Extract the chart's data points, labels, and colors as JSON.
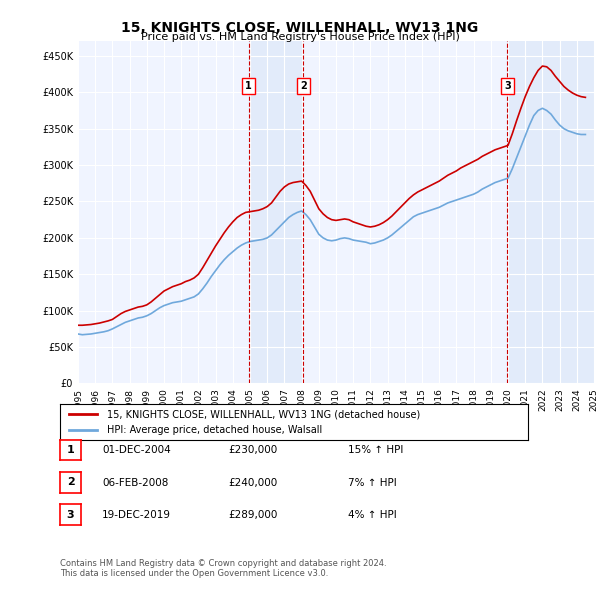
{
  "title": "15, KNIGHTS CLOSE, WILLENHALL, WV13 1NG",
  "subtitle": "Price paid vs. HM Land Registry's House Price Index (HPI)",
  "ylabel": "",
  "ylim": [
    0,
    470000
  ],
  "yticks": [
    0,
    50000,
    100000,
    150000,
    200000,
    250000,
    300000,
    350000,
    400000,
    450000
  ],
  "ytick_labels": [
    "£0",
    "£50K",
    "£100K",
    "£150K",
    "£200K",
    "£250K",
    "£300K",
    "£350K",
    "£400K",
    "£450K"
  ],
  "background_color": "#ffffff",
  "plot_bg_color": "#f0f4ff",
  "grid_color": "#ffffff",
  "legend_label_red": "15, KNIGHTS CLOSE, WILLENHALL, WV13 1NG (detached house)",
  "legend_label_blue": "HPI: Average price, detached house, Walsall",
  "footer": "Contains HM Land Registry data © Crown copyright and database right 2024.\nThis data is licensed under the Open Government Licence v3.0.",
  "transactions": [
    {
      "num": 1,
      "date": "01-DEC-2004",
      "price": 230000,
      "pct": "15%",
      "dir": "↑",
      "x_year": 2004.92
    },
    {
      "num": 2,
      "date": "06-FEB-2008",
      "price": 240000,
      "pct": "7%",
      "dir": "↑",
      "x_year": 2008.1
    },
    {
      "num": 3,
      "date": "19-DEC-2019",
      "price": 289000,
      "pct": "4%",
      "dir": "↑",
      "x_year": 2019.96
    }
  ],
  "hpi_color": "#6fa8dc",
  "price_color": "#cc0000",
  "shade_color": "#d6e4f7",
  "vline_color": "#cc0000",
  "hpi_data": {
    "years": [
      1995.0,
      1995.25,
      1995.5,
      1995.75,
      1996.0,
      1996.25,
      1996.5,
      1996.75,
      1997.0,
      1997.25,
      1997.5,
      1997.75,
      1998.0,
      1998.25,
      1998.5,
      1998.75,
      1999.0,
      1999.25,
      1999.5,
      1999.75,
      2000.0,
      2000.25,
      2000.5,
      2000.75,
      2001.0,
      2001.25,
      2001.5,
      2001.75,
      2002.0,
      2002.25,
      2002.5,
      2002.75,
      2003.0,
      2003.25,
      2003.5,
      2003.75,
      2004.0,
      2004.25,
      2004.5,
      2004.75,
      2005.0,
      2005.25,
      2005.5,
      2005.75,
      2006.0,
      2006.25,
      2006.5,
      2006.75,
      2007.0,
      2007.25,
      2007.5,
      2007.75,
      2008.0,
      2008.25,
      2008.5,
      2008.75,
      2009.0,
      2009.25,
      2009.5,
      2009.75,
      2010.0,
      2010.25,
      2010.5,
      2010.75,
      2011.0,
      2011.25,
      2011.5,
      2011.75,
      2012.0,
      2012.25,
      2012.5,
      2012.75,
      2013.0,
      2013.25,
      2013.5,
      2013.75,
      2014.0,
      2014.25,
      2014.5,
      2014.75,
      2015.0,
      2015.25,
      2015.5,
      2015.75,
      2016.0,
      2016.25,
      2016.5,
      2016.75,
      2017.0,
      2017.25,
      2017.5,
      2017.75,
      2018.0,
      2018.25,
      2018.5,
      2018.75,
      2019.0,
      2019.25,
      2019.5,
      2019.75,
      2020.0,
      2020.25,
      2020.5,
      2020.75,
      2021.0,
      2021.25,
      2021.5,
      2021.75,
      2022.0,
      2022.25,
      2022.5,
      2022.75,
      2023.0,
      2023.25,
      2023.5,
      2023.75,
      2024.0,
      2024.25,
      2024.5
    ],
    "values": [
      68000,
      67000,
      67500,
      68000,
      69000,
      70000,
      71000,
      72500,
      75000,
      78000,
      81000,
      84000,
      86000,
      88000,
      90000,
      91000,
      93000,
      96000,
      100000,
      104000,
      107000,
      109000,
      111000,
      112000,
      113000,
      115000,
      117000,
      119000,
      123000,
      130000,
      138000,
      147000,
      155000,
      163000,
      170000,
      176000,
      181000,
      186000,
      190000,
      193000,
      195000,
      196000,
      197000,
      198000,
      200000,
      204000,
      210000,
      216000,
      222000,
      228000,
      232000,
      235000,
      237000,
      232000,
      225000,
      215000,
      205000,
      200000,
      197000,
      196000,
      197000,
      199000,
      200000,
      199000,
      197000,
      196000,
      195000,
      194000,
      192000,
      193000,
      195000,
      197000,
      200000,
      204000,
      209000,
      214000,
      219000,
      224000,
      229000,
      232000,
      234000,
      236000,
      238000,
      240000,
      242000,
      245000,
      248000,
      250000,
      252000,
      254000,
      256000,
      258000,
      260000,
      263000,
      267000,
      270000,
      273000,
      276000,
      278000,
      280000,
      282000,
      295000,
      310000,
      325000,
      340000,
      355000,
      368000,
      375000,
      378000,
      375000,
      370000,
      362000,
      355000,
      350000,
      347000,
      345000,
      343000,
      342000,
      342000
    ]
  },
  "price_data": {
    "years": [
      1995.0,
      1995.25,
      1995.5,
      1995.75,
      1996.0,
      1996.25,
      1996.5,
      1996.75,
      1997.0,
      1997.25,
      1997.5,
      1997.75,
      1998.0,
      1998.25,
      1998.5,
      1998.75,
      1999.0,
      1999.25,
      1999.5,
      1999.75,
      2000.0,
      2000.25,
      2000.5,
      2000.75,
      2001.0,
      2001.25,
      2001.5,
      2001.75,
      2002.0,
      2002.25,
      2002.5,
      2002.75,
      2003.0,
      2003.25,
      2003.5,
      2003.75,
      2004.0,
      2004.25,
      2004.5,
      2004.75,
      2005.0,
      2005.25,
      2005.5,
      2005.75,
      2006.0,
      2006.25,
      2006.5,
      2006.75,
      2007.0,
      2007.25,
      2007.5,
      2007.75,
      2008.0,
      2008.25,
      2008.5,
      2008.75,
      2009.0,
      2009.25,
      2009.5,
      2009.75,
      2010.0,
      2010.25,
      2010.5,
      2010.75,
      2011.0,
      2011.25,
      2011.5,
      2011.75,
      2012.0,
      2012.25,
      2012.5,
      2012.75,
      2013.0,
      2013.25,
      2013.5,
      2013.75,
      2014.0,
      2014.25,
      2014.5,
      2014.75,
      2015.0,
      2015.25,
      2015.5,
      2015.75,
      2016.0,
      2016.25,
      2016.5,
      2016.75,
      2017.0,
      2017.25,
      2017.5,
      2017.75,
      2018.0,
      2018.25,
      2018.5,
      2018.75,
      2019.0,
      2019.25,
      2019.5,
      2019.75,
      2020.0,
      2020.25,
      2020.5,
      2020.75,
      2021.0,
      2021.25,
      2021.5,
      2021.75,
      2022.0,
      2022.25,
      2022.5,
      2022.75,
      2023.0,
      2023.25,
      2023.5,
      2023.75,
      2024.0,
      2024.25,
      2024.5
    ],
    "values": [
      80000,
      80000,
      80500,
      81000,
      82000,
      83000,
      84500,
      86000,
      88000,
      92000,
      96000,
      99000,
      101000,
      103000,
      105000,
      106000,
      108000,
      112000,
      117000,
      122000,
      127000,
      130000,
      133000,
      135000,
      137000,
      140000,
      142000,
      145000,
      150000,
      159000,
      169000,
      179000,
      189000,
      198000,
      207000,
      215000,
      222000,
      228000,
      232000,
      235000,
      236000,
      237000,
      238000,
      240000,
      243000,
      248000,
      256000,
      264000,
      270000,
      274000,
      276000,
      277000,
      278000,
      272000,
      264000,
      252000,
      240000,
      233000,
      228000,
      225000,
      224000,
      225000,
      226000,
      225000,
      222000,
      220000,
      218000,
      216000,
      215000,
      216000,
      218000,
      221000,
      225000,
      230000,
      236000,
      242000,
      248000,
      254000,
      259000,
      263000,
      266000,
      269000,
      272000,
      275000,
      278000,
      282000,
      286000,
      289000,
      292000,
      296000,
      299000,
      302000,
      305000,
      308000,
      312000,
      315000,
      318000,
      321000,
      323000,
      325000,
      327000,
      343000,
      361000,
      378000,
      394000,
      408000,
      420000,
      430000,
      436000,
      435000,
      430000,
      422000,
      415000,
      408000,
      403000,
      399000,
      396000,
      394000,
      393000
    ]
  },
  "xmin": 1995,
  "xmax": 2025,
  "xticks": [
    1995,
    1996,
    1997,
    1998,
    1999,
    2000,
    2001,
    2002,
    2003,
    2004,
    2005,
    2006,
    2007,
    2008,
    2009,
    2010,
    2011,
    2012,
    2013,
    2014,
    2015,
    2016,
    2017,
    2018,
    2019,
    2020,
    2021,
    2022,
    2023,
    2024,
    2025
  ]
}
